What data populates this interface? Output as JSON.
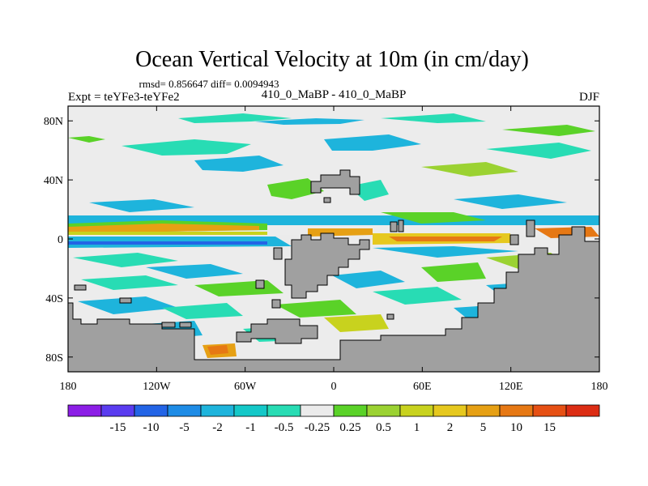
{
  "title": "Ocean Vertical Velocity at 10m (in cm/day)",
  "stats_line": "rmsd= 0.856647 diff= 0.0094943",
  "experiment_label": "Expt = teYFe3-teYFe2",
  "center_label": "410_0_MaBP - 410_0_MaBP",
  "season_label": "DJF",
  "map": {
    "lon_range": [
      -180,
      180
    ],
    "lat_range": [
      -90,
      90
    ],
    "land_color": "#a0a0a0",
    "background_color": "#ececec",
    "x_ticks": [
      {
        "lon": -180,
        "label": "180"
      },
      {
        "lon": -120,
        "label": "120W"
      },
      {
        "lon": -60,
        "label": "60W"
      },
      {
        "lon": 0,
        "label": "0"
      },
      {
        "lon": 60,
        "label": "60E"
      },
      {
        "lon": 120,
        "label": "120E"
      },
      {
        "lon": 180,
        "label": "180"
      }
    ],
    "y_ticks": [
      {
        "lat": 80,
        "label": "80N"
      },
      {
        "lat": 40,
        "label": "40N"
      },
      {
        "lat": 0,
        "label": "0"
      },
      {
        "lat": -40,
        "label": "40S"
      },
      {
        "lat": -80,
        "label": "80S"
      }
    ]
  },
  "colorbar": {
    "colors": [
      "#8c1ee6",
      "#5a3cf0",
      "#2364e6",
      "#1e8ce6",
      "#1eb4dc",
      "#14c8c8",
      "#28dcb4",
      "#ebebeb",
      "#5ad228",
      "#9bd232",
      "#c8d21e",
      "#e6c81e",
      "#e6a014",
      "#e67814",
      "#e65014",
      "#dc2d14"
    ],
    "labels": [
      "-15",
      "-10",
      "-5",
      "-2",
      "-1",
      "-0.5",
      "-0.25",
      "0.25",
      "0.5",
      "1",
      "2",
      "5",
      "10",
      "15"
    ]
  }
}
